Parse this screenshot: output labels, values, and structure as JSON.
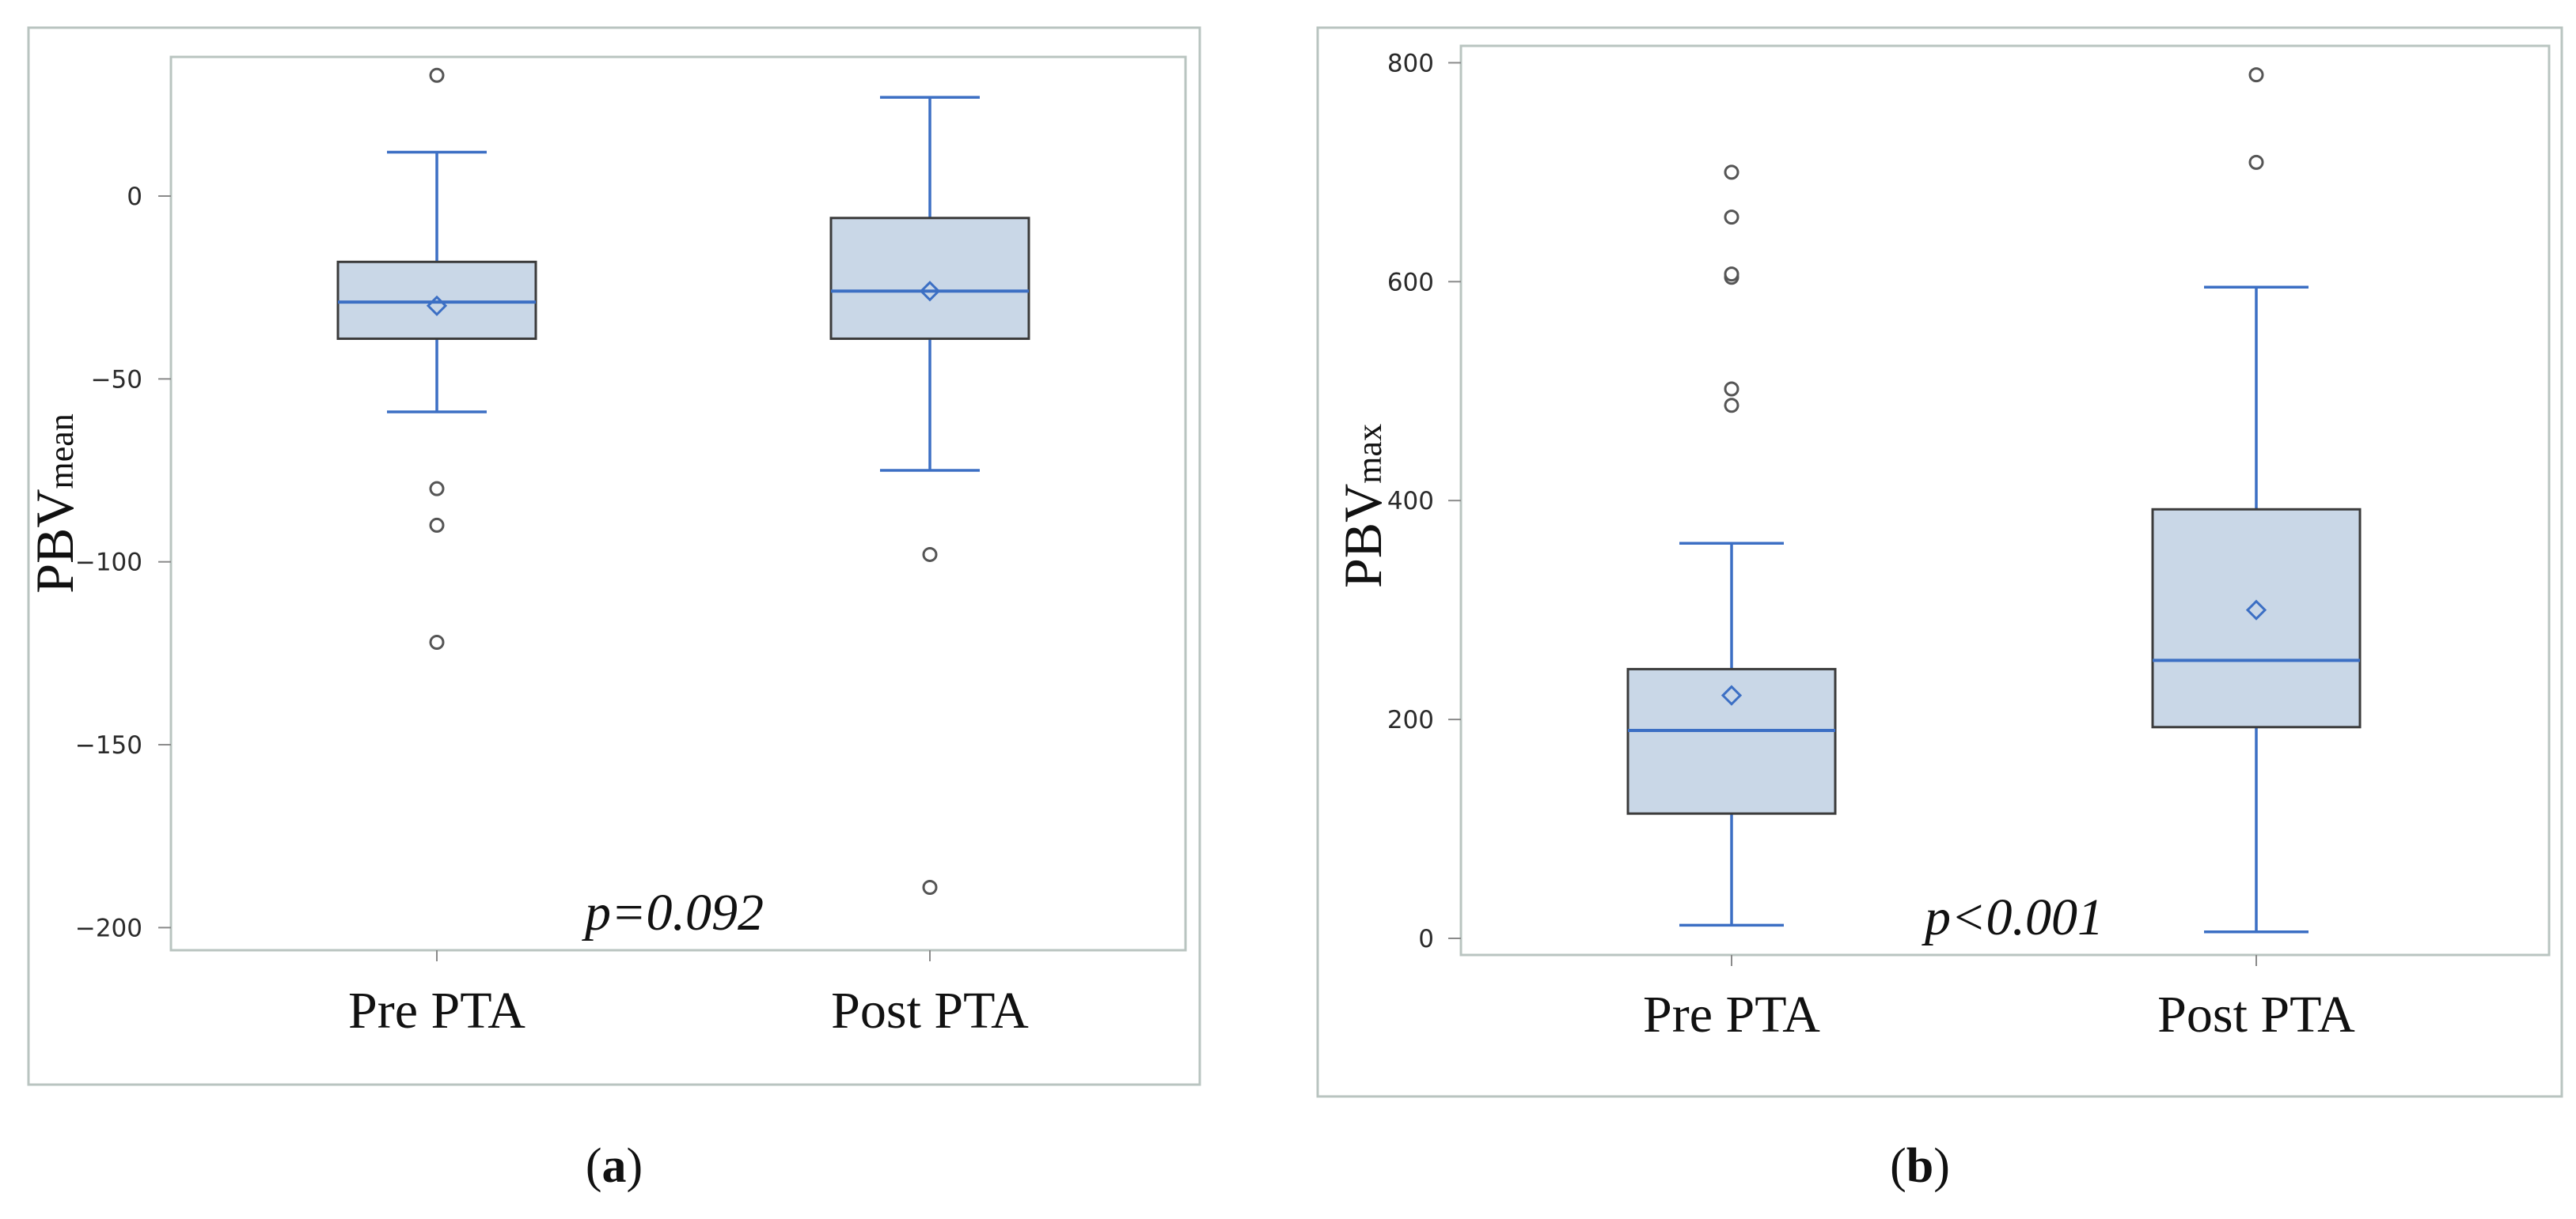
{
  "colors": {
    "box_fill": "#c9d7e7",
    "box_stroke": "#3b3b3b",
    "accent": "#3c6fc4",
    "outlier": "#555555",
    "frame": "#b9c4c0"
  },
  "chart_data": [
    {
      "type": "box",
      "panel": "a",
      "caption": {
        "open": "(",
        "letter": "a",
        "close": ")"
      },
      "ylabel": {
        "main": "PBV",
        "sub": "mean"
      },
      "yticks": [
        0,
        -50,
        -100,
        -150,
        -200
      ],
      "ytick_labels": [
        "0",
        "−50",
        "−100",
        "−150",
        "−200"
      ],
      "ylim": [
        -207,
        36
      ],
      "categories": [
        "Pre PTA",
        "Post PTA"
      ],
      "annotation": "p=0.092",
      "series": [
        {
          "name": "Pre PTA",
          "whisker_low": -59,
          "q1": -39,
          "median": -29,
          "q3": -18,
          "whisker_high": 12,
          "mean": -30,
          "outliers": [
            33,
            -80,
            -90,
            -122
          ]
        },
        {
          "name": "Post PTA",
          "whisker_low": -75,
          "q1": -39,
          "median": -26,
          "q3": -6,
          "whisker_high": 27,
          "mean": -26,
          "outliers": [
            -98,
            -189
          ]
        }
      ]
    },
    {
      "type": "box",
      "panel": "b",
      "caption": {
        "open": "(",
        "letter": "b",
        "close": ")"
      },
      "ylabel": {
        "main": "PBV",
        "sub": "max"
      },
      "yticks": [
        0,
        200,
        400,
        600,
        800
      ],
      "ytick_labels": [
        "0",
        "200",
        "400",
        "600",
        "800"
      ],
      "ylim": [
        -22,
        830
      ],
      "categories": [
        "Pre PTA",
        "Post PTA"
      ],
      "annotation": "p<0.001",
      "series": [
        {
          "name": "Pre PTA",
          "whisker_low": 12,
          "q1": 114,
          "median": 190,
          "q3": 246,
          "whisker_high": 361,
          "mean": 222,
          "outliers": [
            487,
            502,
            604,
            607,
            659,
            700
          ]
        },
        {
          "name": "Post PTA",
          "whisker_low": 6,
          "q1": 193,
          "median": 254,
          "q3": 392,
          "whisker_high": 595,
          "mean": 300,
          "outliers": [
            709,
            789
          ]
        }
      ]
    }
  ]
}
